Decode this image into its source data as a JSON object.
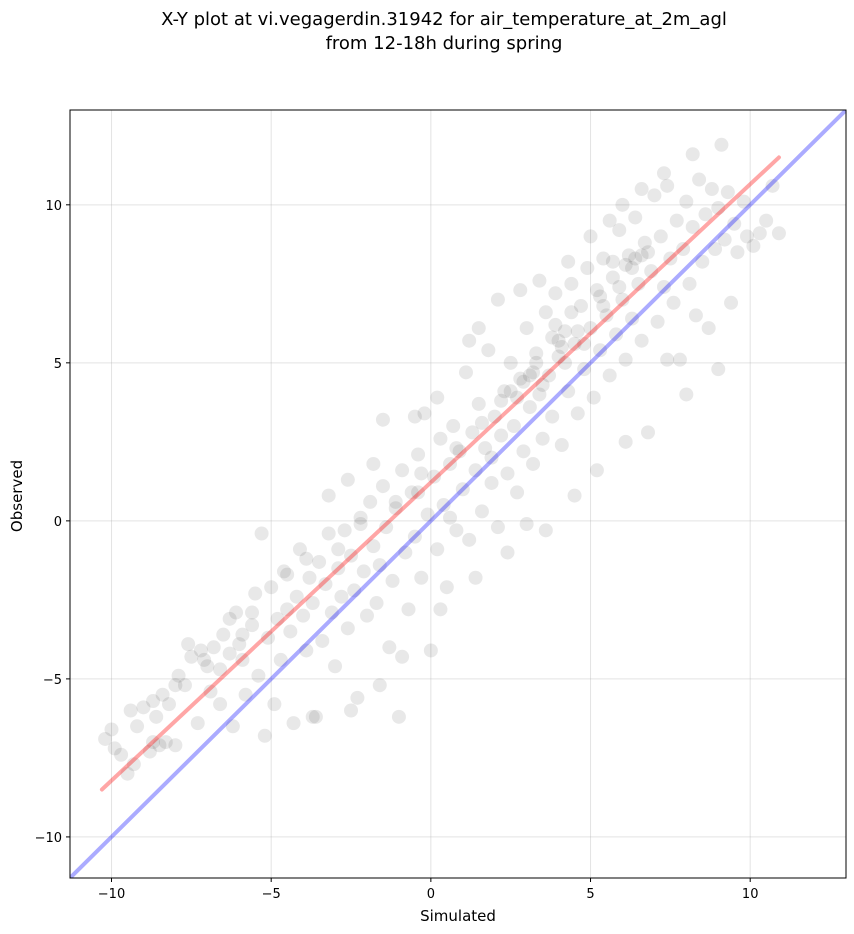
{
  "chart_data": {
    "type": "scatter",
    "title_line1": "X-Y plot at vi.vegagerdin.31942 for air_temperature_at_2m_agl",
    "title_line2": "from 12-18h during spring",
    "xlabel": "Simulated",
    "ylabel": "Observed",
    "xlim": [
      -11.3,
      13.0
    ],
    "ylim": [
      -11.3,
      13.0
    ],
    "xticks": [
      -10,
      -5,
      0,
      5,
      10
    ],
    "yticks": [
      -10,
      -5,
      0,
      5,
      10
    ],
    "xtick_labels": [
      "−10",
      "−5",
      "0",
      "5",
      "10"
    ],
    "ytick_labels": [
      "−10",
      "−5",
      "0",
      "5",
      "10"
    ],
    "grid": true,
    "point_color": "#000000",
    "point_opacity": 0.09,
    "identity_line": {
      "color": "#0000ff",
      "x": [
        -11.3,
        13.0
      ],
      "y": [
        -11.3,
        13.0
      ]
    },
    "fit_line": {
      "color": "#ff0000",
      "x": [
        -10.3,
        10.9
      ],
      "y": [
        -8.5,
        11.5
      ]
    },
    "scatter_points": [
      [
        -10.2,
        -6.9
      ],
      [
        -10.0,
        -6.6
      ],
      [
        -9.9,
        -7.2
      ],
      [
        -9.7,
        -7.4
      ],
      [
        -9.5,
        -8.0
      ],
      [
        -9.4,
        -6.0
      ],
      [
        -9.2,
        -6.5
      ],
      [
        -9.0,
        -5.9
      ],
      [
        -8.8,
        -7.3
      ],
      [
        -8.7,
        -7.0
      ],
      [
        -8.6,
        -6.2
      ],
      [
        -8.5,
        -7.1
      ],
      [
        -8.4,
        -5.5
      ],
      [
        -8.2,
        -5.8
      ],
      [
        -8.0,
        -7.1
      ],
      [
        -7.9,
        -4.9
      ],
      [
        -7.7,
        -5.2
      ],
      [
        -7.6,
        -3.9
      ],
      [
        -7.5,
        -4.3
      ],
      [
        -7.3,
        -6.4
      ],
      [
        -7.2,
        -4.1
      ],
      [
        -7.0,
        -4.6
      ],
      [
        -6.9,
        -5.4
      ],
      [
        -6.8,
        -4.0
      ],
      [
        -6.6,
        -4.7
      ],
      [
        -6.5,
        -3.6
      ],
      [
        -6.3,
        -4.2
      ],
      [
        -6.2,
        -6.5
      ],
      [
        -6.1,
        -2.9
      ],
      [
        -6.0,
        -3.9
      ],
      [
        -5.9,
        -4.4
      ],
      [
        -5.8,
        -5.5
      ],
      [
        -5.6,
        -3.3
      ],
      [
        -5.5,
        -2.3
      ],
      [
        -5.4,
        -4.9
      ],
      [
        -5.3,
        -0.4
      ],
      [
        -5.2,
        -6.8
      ],
      [
        -5.1,
        -3.7
      ],
      [
        -5.0,
        -2.1
      ],
      [
        -4.9,
        -5.8
      ],
      [
        -4.8,
        -3.1
      ],
      [
        -4.7,
        -4.4
      ],
      [
        -4.6,
        -1.6
      ],
      [
        -4.5,
        -2.8
      ],
      [
        -4.4,
        -3.5
      ],
      [
        -4.3,
        -6.4
      ],
      [
        -4.2,
        -2.4
      ],
      [
        -4.1,
        -0.9
      ],
      [
        -4.0,
        -3.0
      ],
      [
        -3.9,
        -4.1
      ],
      [
        -3.8,
        -1.8
      ],
      [
        -3.7,
        -2.6
      ],
      [
        -3.6,
        -6.2
      ],
      [
        -3.5,
        -1.3
      ],
      [
        -3.4,
        -3.8
      ],
      [
        -3.3,
        -2.0
      ],
      [
        -3.2,
        -0.4
      ],
      [
        -3.1,
        -2.9
      ],
      [
        -3.0,
        -4.6
      ],
      [
        -2.9,
        -1.5
      ],
      [
        -2.8,
        -2.4
      ],
      [
        -2.7,
        -0.3
      ],
      [
        -2.6,
        -3.4
      ],
      [
        -2.5,
        -1.1
      ],
      [
        -2.4,
        -2.2
      ],
      [
        -2.3,
        -5.6
      ],
      [
        -2.2,
        0.1
      ],
      [
        -2.1,
        -1.6
      ],
      [
        -2.0,
        -3.0
      ],
      [
        -1.9,
        0.6
      ],
      [
        -1.8,
        -0.8
      ],
      [
        -1.7,
        -2.6
      ],
      [
        -1.6,
        -1.4
      ],
      [
        -1.5,
        1.1
      ],
      [
        -1.4,
        -0.2
      ],
      [
        -1.3,
        -4.0
      ],
      [
        -1.2,
        -1.9
      ],
      [
        -1.1,
        0.4
      ],
      [
        -1.0,
        -6.2
      ],
      [
        -0.9,
        1.6
      ],
      [
        -0.8,
        -1.0
      ],
      [
        -0.7,
        -2.8
      ],
      [
        -0.6,
        0.9
      ],
      [
        -0.5,
        -0.5
      ],
      [
        -0.4,
        2.1
      ],
      [
        -0.3,
        -1.8
      ],
      [
        -0.2,
        3.4
      ],
      [
        -0.1,
        0.2
      ],
      [
        0.0,
        -4.1
      ],
      [
        0.1,
        1.4
      ],
      [
        0.2,
        -0.9
      ],
      [
        0.3,
        2.6
      ],
      [
        0.4,
        0.5
      ],
      [
        0.5,
        -2.1
      ],
      [
        0.6,
        1.8
      ],
      [
        0.7,
        3.0
      ],
      [
        0.8,
        -0.3
      ],
      [
        0.9,
        2.2
      ],
      [
        1.0,
        1.0
      ],
      [
        1.1,
        4.7
      ],
      [
        1.2,
        -0.6
      ],
      [
        1.3,
        2.8
      ],
      [
        1.4,
        1.6
      ],
      [
        1.5,
        3.7
      ],
      [
        1.6,
        0.3
      ],
      [
        1.7,
        2.3
      ],
      [
        1.8,
        5.4
      ],
      [
        1.9,
        1.2
      ],
      [
        2.0,
        3.3
      ],
      [
        2.1,
        -0.2
      ],
      [
        2.2,
        2.7
      ],
      [
        2.3,
        4.1
      ],
      [
        2.4,
        1.5
      ],
      [
        2.5,
        5.0
      ],
      [
        2.6,
        3.0
      ],
      [
        2.7,
        0.9
      ],
      [
        2.8,
        4.5
      ],
      [
        2.9,
        2.2
      ],
      [
        3.0,
        6.1
      ],
      [
        3.1,
        3.6
      ],
      [
        3.2,
        1.8
      ],
      [
        3.3,
        5.3
      ],
      [
        3.4,
        4.0
      ],
      [
        3.5,
        2.6
      ],
      [
        3.6,
        6.6
      ],
      [
        3.7,
        4.6
      ],
      [
        3.8,
        3.3
      ],
      [
        3.9,
        7.2
      ],
      [
        4.0,
        5.2
      ],
      [
        4.1,
        2.4
      ],
      [
        4.2,
        6.0
      ],
      [
        4.3,
        4.1
      ],
      [
        4.4,
        7.5
      ],
      [
        4.5,
        5.6
      ],
      [
        4.6,
        3.4
      ],
      [
        4.7,
        6.8
      ],
      [
        4.8,
        4.8
      ],
      [
        4.9,
        8.0
      ],
      [
        5.0,
        6.1
      ],
      [
        5.1,
        3.9
      ],
      [
        5.2,
        7.3
      ],
      [
        5.3,
        5.4
      ],
      [
        5.4,
        8.3
      ],
      [
        5.5,
        6.5
      ],
      [
        5.6,
        4.6
      ],
      [
        5.7,
        7.7
      ],
      [
        5.8,
        5.9
      ],
      [
        5.9,
        9.2
      ],
      [
        6.0,
        7.0
      ],
      [
        6.1,
        5.1
      ],
      [
        6.2,
        8.4
      ],
      [
        6.3,
        6.4
      ],
      [
        6.4,
        9.6
      ],
      [
        6.5,
        7.5
      ],
      [
        6.6,
        5.7
      ],
      [
        6.7,
        8.8
      ],
      [
        6.8,
        2.8
      ],
      [
        6.9,
        7.9
      ],
      [
        7.0,
        10.3
      ],
      [
        7.1,
        6.3
      ],
      [
        7.2,
        9.0
      ],
      [
        7.3,
        7.4
      ],
      [
        7.4,
        10.6
      ],
      [
        7.5,
        8.3
      ],
      [
        7.6,
        6.9
      ],
      [
        7.7,
        9.5
      ],
      [
        7.8,
        5.1
      ],
      [
        7.9,
        8.6
      ],
      [
        8.0,
        10.1
      ],
      [
        8.1,
        7.5
      ],
      [
        8.2,
        9.3
      ],
      [
        8.3,
        6.5
      ],
      [
        8.4,
        10.8
      ],
      [
        8.5,
        8.2
      ],
      [
        8.6,
        9.7
      ],
      [
        8.7,
        6.1
      ],
      [
        8.8,
        10.5
      ],
      [
        8.9,
        8.6
      ],
      [
        9.0,
        9.9
      ],
      [
        9.1,
        11.9
      ],
      [
        9.2,
        8.9
      ],
      [
        9.3,
        10.4
      ],
      [
        9.4,
        6.9
      ],
      [
        9.5,
        9.4
      ],
      [
        9.6,
        8.5
      ],
      [
        9.8,
        10.1
      ],
      [
        9.9,
        9.0
      ],
      [
        10.1,
        8.7
      ],
      [
        10.3,
        9.1
      ],
      [
        10.5,
        9.5
      ],
      [
        10.7,
        10.6
      ],
      [
        10.9,
        9.1
      ],
      [
        -0.5,
        3.3
      ],
      [
        0.2,
        3.9
      ],
      [
        -1.5,
        3.2
      ],
      [
        -1.8,
        1.8
      ],
      [
        -2.6,
        1.3
      ],
      [
        -3.2,
        0.8
      ],
      [
        1.2,
        5.7
      ],
      [
        1.5,
        6.1
      ],
      [
        2.1,
        7.0
      ],
      [
        2.8,
        7.3
      ],
      [
        3.4,
        7.6
      ],
      [
        4.3,
        8.2
      ],
      [
        5.0,
        9.0
      ],
      [
        5.6,
        9.5
      ],
      [
        6.0,
        10.0
      ],
      [
        6.6,
        10.5
      ],
      [
        7.3,
        11.0
      ],
      [
        8.2,
        11.6
      ],
      [
        4.5,
        0.8
      ],
      [
        3.6,
        -0.3
      ],
      [
        3.0,
        -0.1
      ],
      [
        5.2,
        1.6
      ],
      [
        6.1,
        2.5
      ],
      [
        7.4,
        5.1
      ],
      [
        8.0,
        4.0
      ],
      [
        9.0,
        4.8
      ],
      [
        0.3,
        -2.8
      ],
      [
        -1.6,
        -5.2
      ],
      [
        -3.7,
        -6.2
      ],
      [
        -0.9,
        -4.3
      ],
      [
        -2.5,
        -6.0
      ],
      [
        1.4,
        -1.8
      ],
      [
        2.4,
        -1.0
      ],
      [
        -0.4,
        0.9
      ],
      [
        0.6,
        0.1
      ],
      [
        1.9,
        2.0
      ],
      [
        2.7,
        3.9
      ],
      [
        3.5,
        4.3
      ],
      [
        4.1,
        5.5
      ],
      [
        4.6,
        6.0
      ],
      [
        5.4,
        6.8
      ],
      [
        5.9,
        7.4
      ],
      [
        6.3,
        8.0
      ],
      [
        6.8,
        8.5
      ],
      [
        3.8,
        5.8
      ],
      [
        4.2,
        5.0
      ],
      [
        3.2,
        4.7
      ],
      [
        2.9,
        4.4
      ],
      [
        4.8,
        5.6
      ],
      [
        5.3,
        7.1
      ],
      [
        6.1,
        8.1
      ],
      [
        6.4,
        8.3
      ],
      [
        3.9,
        6.2
      ],
      [
        3.3,
        5.0
      ],
      [
        2.5,
        4.1
      ],
      [
        4.4,
        6.6
      ],
      [
        5.7,
        8.2
      ],
      [
        6.6,
        8.4
      ],
      [
        -4.5,
        -1.7
      ],
      [
        -5.6,
        -2.9
      ],
      [
        -6.3,
        -3.1
      ],
      [
        -7.1,
        -4.4
      ],
      [
        -8.0,
        -5.2
      ],
      [
        -8.7,
        -5.7
      ],
      [
        -9.3,
        -7.7
      ],
      [
        -8.3,
        -7.0
      ],
      [
        -6.6,
        -5.8
      ],
      [
        -5.9,
        -3.6
      ],
      [
        -3.9,
        -1.2
      ],
      [
        -2.9,
        -0.9
      ],
      [
        -2.2,
        -0.1
      ],
      [
        -1.1,
        0.6
      ],
      [
        -0.3,
        1.5
      ],
      [
        0.8,
        2.3
      ],
      [
        1.6,
        3.1
      ],
      [
        2.2,
        3.8
      ],
      [
        3.1,
        4.6
      ],
      [
        4.0,
        5.7
      ]
    ]
  }
}
